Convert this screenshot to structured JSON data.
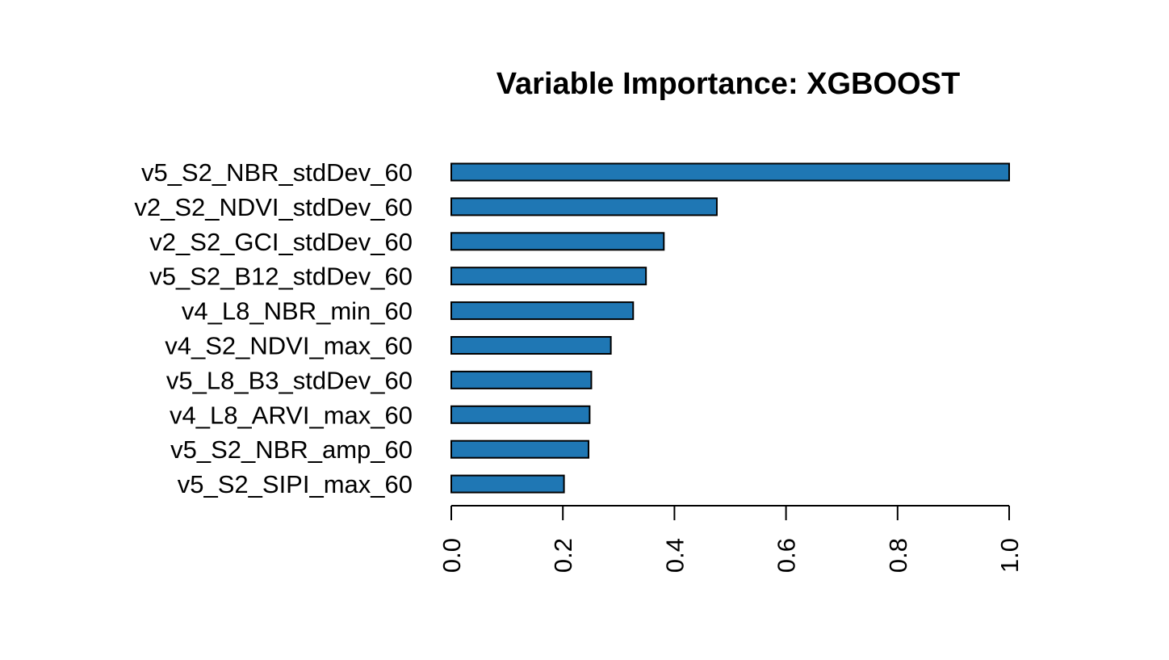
{
  "chart_data": {
    "type": "bar",
    "orientation": "horizontal",
    "title": "Variable Importance: XGBOOST",
    "xlabel": "",
    "ylabel": "",
    "categories": [
      "v5_S2_NBR_stdDev_60",
      "v2_S2_NDVI_stdDev_60",
      "v2_S2_GCI_stdDev_60",
      "v5_S2_B12_stdDev_60",
      "v4_L8_NBR_min_60",
      "v4_S2_NDVI_max_60",
      "v5_L8_B3_stdDev_60",
      "v4_L8_ARVI_max_60",
      "v5_S2_NBR_amp_60",
      "v5_S2_SIPI_max_60"
    ],
    "values": [
      1.0,
      0.476,
      0.381,
      0.349,
      0.326,
      0.286,
      0.251,
      0.248,
      0.246,
      0.202
    ],
    "xlim": [
      0,
      1
    ],
    "x_ticks": [
      "0.0",
      "0.2",
      "0.4",
      "0.6",
      "0.8",
      "1.0"
    ],
    "tick_values": [
      0,
      0.2,
      0.4,
      0.6,
      0.8,
      1.0
    ],
    "bar_color": "#1f77b4",
    "grid": false,
    "legend": "none"
  }
}
